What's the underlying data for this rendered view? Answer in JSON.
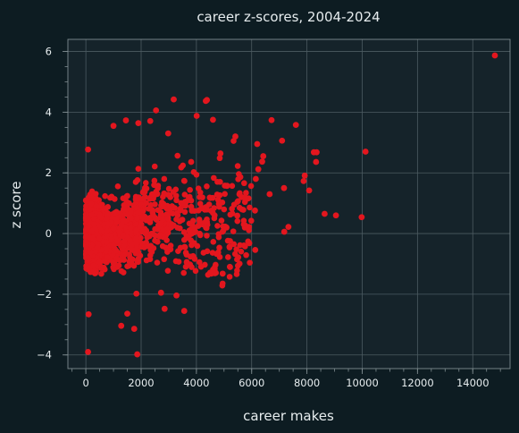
{
  "colors": {
    "figure_bg": "#0d1c22",
    "plot_bg": "#15232a",
    "grid": "#4c5b61",
    "spine": "#7f8c90",
    "text": "#e6ecee",
    "marker": "#e3161e"
  },
  "chart_data": {
    "type": "scatter",
    "title": "career z-scores, 2004-2024",
    "xlabel": "career makes",
    "ylabel": "z score",
    "xlim": [
      -650,
      15350
    ],
    "ylim": [
      -4.45,
      6.4
    ],
    "xticks": [
      0,
      2000,
      4000,
      6000,
      8000,
      10000,
      12000,
      14000
    ],
    "yticks": [
      -4,
      -2,
      0,
      2,
      4,
      6
    ],
    "x_minor_step": 500,
    "y_minor_step": 0.5,
    "grid": true,
    "legend": "none",
    "dense_cluster": {
      "note_hidden": true,
      "x_range": [
        0,
        1900
      ],
      "y_range": [
        -2.6,
        2.3
      ]
    },
    "points": [
      {
        "x": 14800,
        "y": 5.87
      },
      {
        "x": 10120,
        "y": 2.7
      },
      {
        "x": 9980,
        "y": 0.54
      },
      {
        "x": 9050,
        "y": 0.6
      },
      {
        "x": 8640,
        "y": 0.65
      },
      {
        "x": 8350,
        "y": 2.68
      },
      {
        "x": 8250,
        "y": 2.68
      },
      {
        "x": 8330,
        "y": 2.36
      },
      {
        "x": 8080,
        "y": 1.42
      },
      {
        "x": 7920,
        "y": 1.91
      },
      {
        "x": 7880,
        "y": 1.73
      },
      {
        "x": 7600,
        "y": 3.58
      },
      {
        "x": 7330,
        "y": 0.22
      },
      {
        "x": 7180,
        "y": 0.06
      },
      {
        "x": 7170,
        "y": 1.5
      },
      {
        "x": 7100,
        "y": 3.06
      },
      {
        "x": 6720,
        "y": 3.74
      },
      {
        "x": 6650,
        "y": 1.3
      },
      {
        "x": 6420,
        "y": 2.55
      },
      {
        "x": 6380,
        "y": 2.37
      },
      {
        "x": 6240,
        "y": 2.12
      },
      {
        "x": 6200,
        "y": 2.95
      },
      {
        "x": 6150,
        "y": 1.8
      },
      {
        "x": 6120,
        "y": 0.76
      },
      {
        "x": 6130,
        "y": -0.54
      },
      {
        "x": 5900,
        "y": 0.22
      },
      {
        "x": 5760,
        "y": 0.27
      },
      {
        "x": 5640,
        "y": 1.2
      },
      {
        "x": 5480,
        "y": 0.59
      },
      {
        "x": 5410,
        "y": 3.2
      },
      {
        "x": 5090,
        "y": 0.2
      },
      {
        "x": 5030,
        "y": 1.58
      },
      {
        "x": 4950,
        "y": -1.32
      },
      {
        "x": 4870,
        "y": 2.64
      },
      {
        "x": 4600,
        "y": 3.75
      },
      {
        "x": 4540,
        "y": -1.32
      },
      {
        "x": 4380,
        "y": 4.4
      },
      {
        "x": 4340,
        "y": 4.37
      },
      {
        "x": 4120,
        "y": 0.4
      },
      {
        "x": 4010,
        "y": 3.88
      },
      {
        "x": 3810,
        "y": 2.36
      },
      {
        "x": 3750,
        "y": 0.1
      },
      {
        "x": 3650,
        "y": -0.94
      },
      {
        "x": 3560,
        "y": -2.55
      },
      {
        "x": 3280,
        "y": -2.04
      },
      {
        "x": 3180,
        "y": 4.42
      },
      {
        "x": 2980,
        "y": 3.3
      },
      {
        "x": 2850,
        "y": -2.48
      },
      {
        "x": 2720,
        "y": -1.95
      },
      {
        "x": 2540,
        "y": 4.06
      },
      {
        "x": 2330,
        "y": 3.71
      },
      {
        "x": 1900,
        "y": 3.64
      },
      {
        "x": 1830,
        "y": -1.98
      },
      {
        "x": 1750,
        "y": -3.14
      },
      {
        "x": 1860,
        "y": -3.98
      },
      {
        "x": 1450,
        "y": 3.73
      },
      {
        "x": 1280,
        "y": -3.04
      },
      {
        "x": 1000,
        "y": 3.55
      },
      {
        "x": 80,
        "y": -3.9
      },
      {
        "x": 80,
        "y": 2.77
      },
      {
        "x": 100,
        "y": -2.66
      },
      {
        "x": 1500,
        "y": -2.64
      }
    ]
  }
}
